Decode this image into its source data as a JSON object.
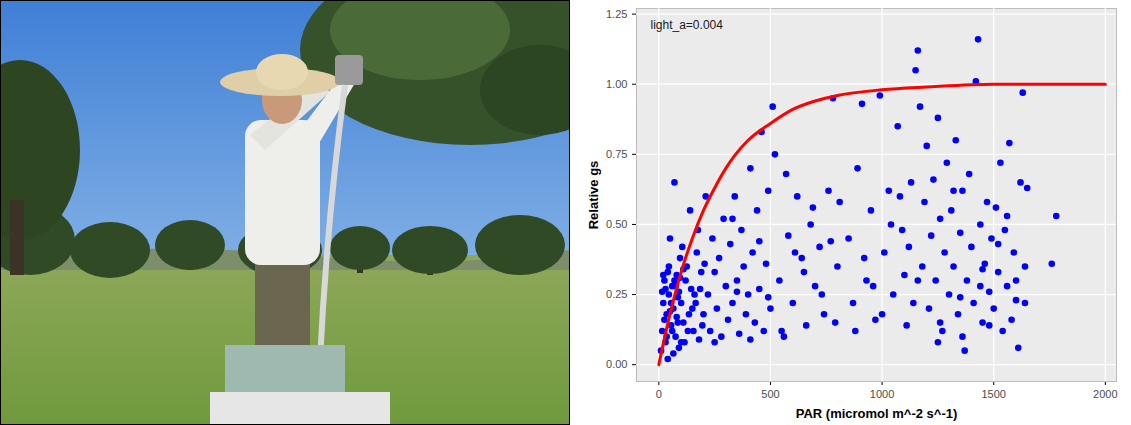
{
  "chart_data": {
    "type": "scatter",
    "x_label": "PAR (micromol m^-2 s^-1)",
    "y_label": "Relative gs",
    "annotations": [
      {
        "text": "light_a=0.004"
      }
    ],
    "xlim": [
      -100,
      2050
    ],
    "xticks": [
      0,
      500,
      1000,
      1500,
      2000
    ],
    "ylim": [
      -0.06,
      1.27
    ],
    "yticks": [
      {
        "value": 0,
        "label": "0.00"
      },
      {
        "value": 0.25,
        "label": "0.25"
      },
      {
        "value": 0.5,
        "label": "0.50"
      },
      {
        "value": 0.75,
        "label": "0.75"
      },
      {
        "value": 1,
        "label": "1.00"
      },
      {
        "value": 1.25,
        "label": "1.25"
      }
    ],
    "grid": true,
    "series": [
      {
        "type": "scatter",
        "color": "#0000ff",
        "marker": "circle",
        "x": [
          10,
          15,
          20,
          25,
          30,
          35,
          40,
          45,
          50,
          55,
          60,
          65,
          70,
          75,
          80,
          85,
          90,
          95,
          100,
          110,
          120,
          130,
          140,
          150,
          160,
          170,
          180,
          190,
          200,
          210,
          15,
          25,
          35,
          45,
          55,
          65,
          75,
          85,
          95,
          105,
          115,
          125,
          135,
          145,
          155,
          165,
          175,
          185,
          195,
          205,
          20,
          30,
          40,
          50,
          60,
          70,
          80,
          90,
          100,
          110,
          220,
          230,
          240,
          250,
          260,
          270,
          280,
          290,
          300,
          310,
          320,
          330,
          340,
          350,
          360,
          370,
          380,
          390,
          400,
          410,
          420,
          430,
          440,
          450,
          460,
          470,
          480,
          490,
          500,
          510,
          520,
          540,
          560,
          580,
          600,
          620,
          640,
          660,
          680,
          700,
          720,
          740,
          760,
          780,
          800,
          250,
          350,
          450,
          550,
          650,
          330,
          410,
          490,
          570,
          610,
          690,
          730,
          770,
          790,
          810,
          850,
          870,
          890,
          910,
          930,
          950,
          970,
          990,
          1010,
          1030,
          1050,
          1070,
          1090,
          1110,
          1130,
          1150,
          1160,
          1170,
          1180,
          1190,
          1200,
          1210,
          1220,
          1230,
          1240,
          1250,
          1260,
          1270,
          1280,
          1290,
          1300,
          1310,
          1320,
          1330,
          1340,
          1350,
          1360,
          1370,
          1380,
          1390,
          1400,
          1410,
          1420,
          1430,
          1440,
          1450,
          1460,
          1470,
          1480,
          1490,
          1500,
          1510,
          1520,
          1530,
          1540,
          1550,
          1560,
          1570,
          1580,
          1590,
          1600,
          1610,
          1620,
          1630,
          1640,
          1650,
          1760,
          1780,
          1100,
          1000,
          880,
          920,
          960,
          1040,
          1080,
          1120,
          1140,
          1160,
          1260,
          1320,
          1360,
          1440,
          1480,
          1520,
          1560,
          1600,
          1640,
          1250,
          1350,
          1450
        ],
        "values": [
          0.05,
          0.12,
          0.22,
          0.3,
          0.08,
          0.18,
          0.33,
          0.25,
          0.45,
          0.14,
          0.28,
          0.2,
          0.65,
          0.1,
          0.32,
          0.24,
          0.06,
          0.38,
          0.22,
          0.15,
          0.3,
          0.12,
          0.55,
          0.2,
          0.25,
          0.4,
          0.09,
          0.33,
          0.18,
          0.6,
          0.26,
          0.16,
          0.1,
          0.35,
          0.22,
          0.04,
          0.28,
          0.15,
          0.31,
          0.42,
          0.08,
          0.35,
          0.18,
          0.27,
          0.12,
          0.22,
          0.48,
          0.27,
          0.14,
          0.36,
          0.32,
          0.27,
          0.02,
          0.19,
          0.12,
          0.3,
          0.17,
          0.26,
          0.08,
          0.34,
          0.25,
          0.12,
          0.45,
          0.33,
          0.2,
          0.38,
          0.1,
          0.52,
          0.28,
          0.16,
          0.43,
          0.22,
          0.6,
          0.3,
          0.11,
          0.48,
          0.35,
          0.18,
          0.25,
          0.7,
          0.4,
          0.15,
          0.55,
          0.27,
          0.83,
          0.12,
          0.36,
          0.62,
          0.2,
          0.92,
          0.75,
          0.3,
          0.1,
          0.46,
          0.22,
          0.6,
          0.38,
          0.14,
          0.5,
          0.28,
          0.42,
          0.18,
          0.62,
          0.95,
          0.35,
          0.08,
          0.26,
          0.44,
          0.12,
          0.33,
          0.52,
          0.09,
          0.24,
          0.68,
          0.4,
          0.56,
          0.25,
          0.44,
          0.15,
          0.58,
          0.45,
          0.22,
          0.7,
          0.93,
          0.3,
          0.55,
          0.16,
          0.96,
          0.4,
          0.62,
          0.25,
          0.85,
          0.48,
          0.14,
          0.65,
          1.05,
          1.12,
          0.92,
          0.35,
          0.58,
          0.78,
          0.2,
          0.46,
          0.66,
          0.3,
          0.88,
          0.52,
          0.12,
          0.4,
          0.72,
          0.25,
          0.55,
          0.35,
          0.8,
          0.18,
          0.47,
          0.62,
          0.05,
          0.3,
          0.68,
          0.42,
          0.22,
          1.01,
          1.16,
          0.5,
          0.15,
          0.36,
          0.58,
          0.26,
          0.45,
          0.2,
          0.56,
          0.33,
          0.72,
          0.12,
          0.48,
          0.28,
          0.79,
          0.16,
          0.4,
          0.23,
          0.06,
          0.65,
          0.97,
          0.35,
          0.63,
          0.36,
          0.53,
          0.32,
          0.18,
          0.12,
          0.38,
          0.28,
          0.5,
          0.6,
          0.42,
          0.22,
          0.3,
          0.15,
          0.62,
          0.1,
          0.28,
          0.14,
          0.43,
          0.53,
          0.3,
          0.22,
          0.08,
          0.24,
          0.34
        ]
      },
      {
        "type": "line",
        "color": "#ff0000",
        "line_style": "solid",
        "x": [
          0,
          50,
          100,
          150,
          200,
          250,
          300,
          400,
          500,
          600,
          700,
          800,
          1000,
          1200,
          1500,
          2000
        ],
        "values": [
          0,
          0.18,
          0.33,
          0.45,
          0.55,
          0.63,
          0.7,
          0.8,
          0.86,
          0.91,
          0.94,
          0.96,
          0.98,
          0.99,
          1.0,
          1.0
        ]
      }
    ]
  }
}
